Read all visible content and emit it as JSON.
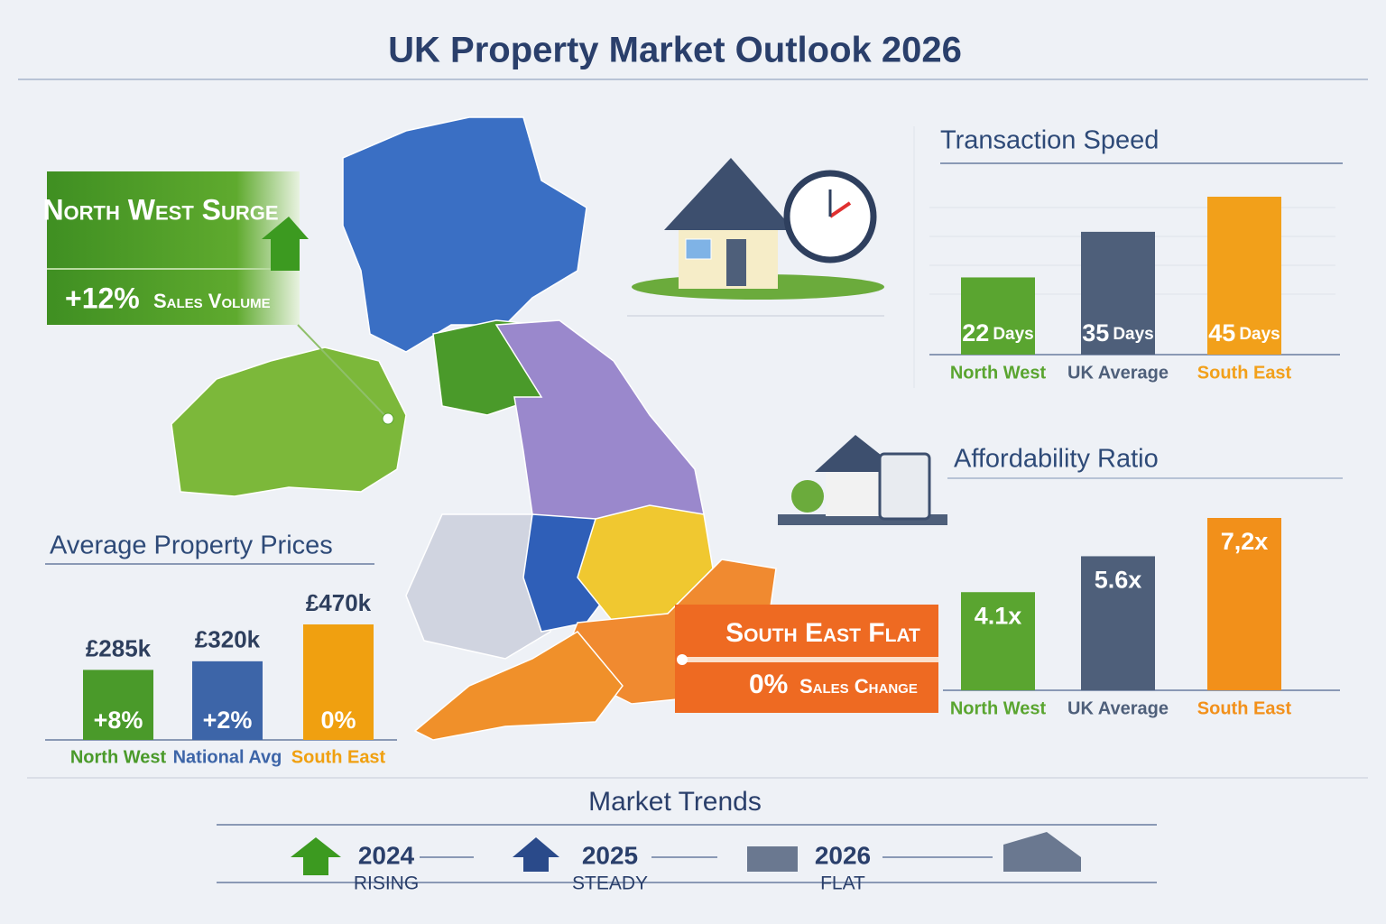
{
  "title": "UK Property Market Outlook 2026",
  "callouts": [
    {
      "title": "North West Surge",
      "figure": "+12%",
      "text": "Sales Volume"
    },
    {
      "title": "South East Flat",
      "figure": "0%",
      "text": "Sales Change"
    }
  ],
  "chart_data": [
    {
      "type": "bar",
      "title": "Average Property Prices",
      "categories": [
        "North West",
        "National Avg",
        "South East"
      ],
      "values": [
        285,
        320,
        470
      ],
      "value_labels": [
        "£285k",
        "£320k",
        "£470k"
      ],
      "change_labels": [
        "+8%",
        "+2%",
        "0%"
      ],
      "colors": [
        "#4a9a2a",
        "#3d65a8",
        "#f0a010"
      ]
    },
    {
      "type": "bar",
      "title": "Transaction Speed",
      "categories": [
        "North West",
        "UK Average",
        "South East"
      ],
      "values": [
        22,
        35,
        45
      ],
      "unit": "Days",
      "colors": [
        "#5aa530",
        "#4e5f7a",
        "#f2a01a"
      ]
    },
    {
      "type": "bar",
      "title": "Affordability Ratio",
      "categories": [
        "North West",
        "UK Average",
        "South East"
      ],
      "values": [
        4.1,
        5.6,
        7.2
      ],
      "value_labels": [
        "4.1x",
        "5.6x",
        "7,2x"
      ],
      "colors": [
        "#5aa530",
        "#4e5f7a",
        "#f2901a"
      ]
    }
  ],
  "trends": {
    "title": "Market Trends",
    "steps": [
      {
        "year": "2024",
        "label": "Rising"
      },
      {
        "year": "2025",
        "label": "Steady"
      },
      {
        "year": "2026",
        "label": "Flat"
      }
    ]
  }
}
